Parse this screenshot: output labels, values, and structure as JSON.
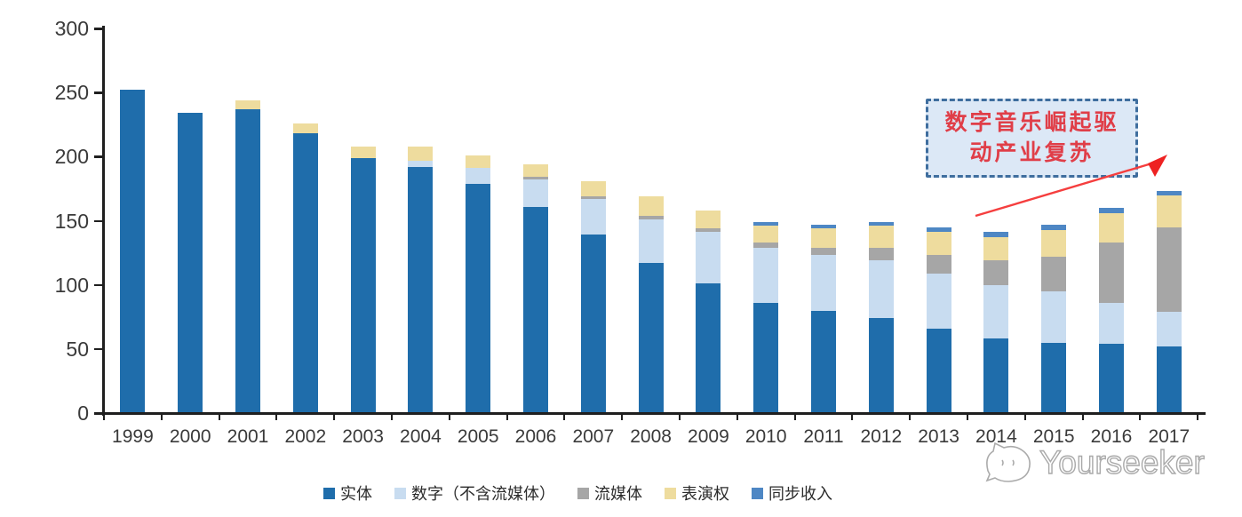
{
  "chart_data": {
    "type": "bar",
    "stacked": true,
    "title": "",
    "xlabel": "",
    "ylabel": "",
    "categories": [
      "1999",
      "2000",
      "2001",
      "2002",
      "2003",
      "2004",
      "2005",
      "2006",
      "2007",
      "2008",
      "2009",
      "2010",
      "2011",
      "2012",
      "2013",
      "2014",
      "2015",
      "2016",
      "2017"
    ],
    "series": [
      {
        "name": "实体",
        "color": "#1f6dab",
        "values": [
          252,
          234,
          237,
          218,
          199,
          192,
          179,
          161,
          139,
          117,
          101,
          86,
          80,
          74,
          66,
          58,
          55,
          54,
          52
        ]
      },
      {
        "name": "数字（不含流媒体）",
        "color": "#c8dcf0",
        "values": [
          0,
          0,
          0,
          0,
          0,
          5,
          12,
          21,
          28,
          34,
          40,
          43,
          43,
          45,
          43,
          42,
          40,
          32,
          27
        ]
      },
      {
        "name": "流媒体",
        "color": "#a6a6a6",
        "values": [
          0,
          0,
          0,
          0,
          0,
          0,
          0,
          2,
          2,
          3,
          3,
          4,
          6,
          10,
          14,
          19,
          27,
          47,
          66
        ]
      },
      {
        "name": "表演权",
        "color": "#eedc9e",
        "values": [
          0,
          0,
          7,
          8,
          9,
          11,
          10,
          10,
          12,
          15,
          14,
          13,
          15,
          17,
          18,
          18,
          21,
          23,
          25
        ]
      },
      {
        "name": "同步收入",
        "color": "#4e87c4",
        "values": [
          0,
          0,
          0,
          0,
          0,
          0,
          0,
          0,
          0,
          0,
          0,
          3,
          3,
          3,
          4,
          4,
          4,
          4,
          3
        ]
      }
    ],
    "ylim": [
      0,
      300
    ],
    "yticks": [
      0,
      50,
      100,
      150,
      200,
      250,
      300
    ],
    "grid": false,
    "legend_position": "bottom"
  },
  "annotation": {
    "line1": "数字音乐崛起驱",
    "line2": "动产业复苏",
    "text_color": "#e03e48",
    "box_fill": "#dce8f6",
    "box_border_color": "#3f6e9e",
    "arrow_color": "#f53e3e"
  },
  "watermark": {
    "text": "Yourseeker"
  }
}
